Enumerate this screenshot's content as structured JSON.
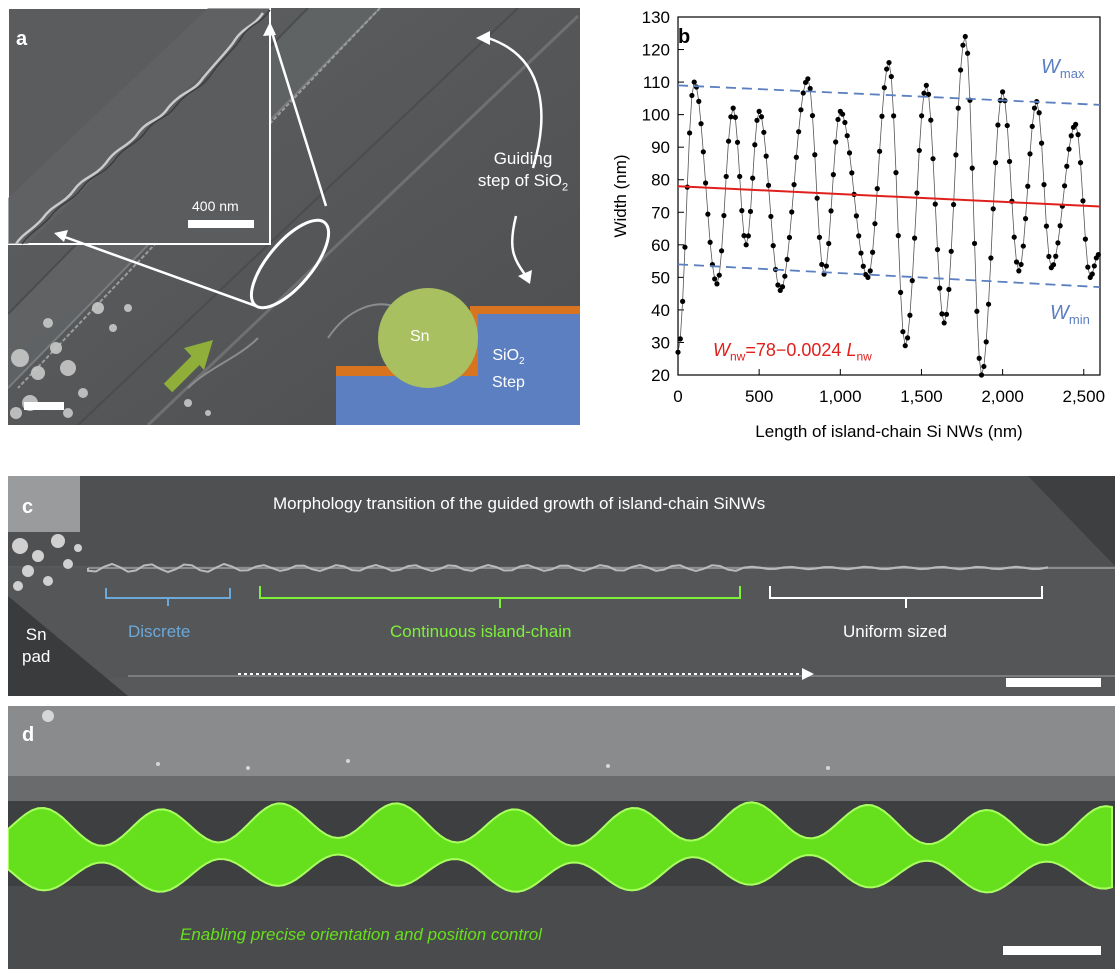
{
  "panel_a": {
    "label": "a",
    "inset_scale": "400 nm",
    "guide_line1": "Guiding",
    "guide_line2": "step of SiO",
    "guide_sub": "2",
    "sn": "Sn",
    "step_line1": "SiO",
    "step_sub": "2",
    "step_line2": "Step",
    "colors": {
      "sn": "#a8c060",
      "step": "#5b7fc0",
      "layer": "#d8731f",
      "arrow": "#8fae3a"
    }
  },
  "panel_b": {
    "label": "b",
    "wmax_main": "W",
    "wmax_sub": "max",
    "wmin_main": "W",
    "wmin_sub": "min",
    "eq_w": "W",
    "eq_w_sub": "nw",
    "eq_text": "=78−0.0024 ",
    "eq_l": "L",
    "eq_l_sub": "nw"
  },
  "chart_data": {
    "type": "scatter",
    "xlabel": "Length of island-chain Si NWs (nm)",
    "ylabel": "Width (nm)",
    "xlim": [
      0,
      2600
    ],
    "ylim": [
      20,
      130
    ],
    "xticks": [
      0,
      500,
      1000,
      1500,
      2000,
      2500
    ],
    "xtick_labels": [
      "0",
      "500",
      "1,000",
      "1,500",
      "2,000",
      "2,500"
    ],
    "yticks": [
      20,
      30,
      40,
      50,
      60,
      70,
      80,
      90,
      100,
      110,
      120,
      130
    ],
    "peaks": [
      [
        100,
        110
      ],
      [
        340,
        102
      ],
      [
        500,
        101
      ],
      [
        800,
        111
      ],
      [
        1000,
        101
      ],
      [
        1300,
        116
      ],
      [
        1530,
        109
      ],
      [
        1770,
        124
      ],
      [
        2000,
        107
      ],
      [
        2210,
        104
      ],
      [
        2450,
        97
      ]
    ],
    "troughs": [
      [
        0,
        27
      ],
      [
        240,
        48
      ],
      [
        420,
        60
      ],
      [
        630,
        46
      ],
      [
        900,
        51
      ],
      [
        1170,
        50
      ],
      [
        1400,
        29
      ],
      [
        1640,
        36
      ],
      [
        1870,
        20
      ],
      [
        2100,
        52
      ],
      [
        2300,
        53
      ],
      [
        2540,
        50
      ],
      [
        2590,
        57
      ]
    ],
    "fit_red": {
      "intercept": 78,
      "slope": -0.0024,
      "color": "#e0201c"
    },
    "wmax_line": {
      "x": [
        0,
        2600
      ],
      "y": [
        109,
        103
      ],
      "color": "#5b7fc0"
    },
    "wmin_line": {
      "x": [
        0,
        2600
      ],
      "y": [
        54,
        47
      ],
      "color": "#5b7fc0"
    }
  },
  "panel_c": {
    "label": "c",
    "title": "Morphology transition of the guided growth of island-chain SiNWs",
    "sn_pad_line1": "Sn",
    "sn_pad_line2": "pad",
    "discrete": "Discrete",
    "continuous": "Continuous island-chain",
    "uniform": "Uniform sized",
    "colors": {
      "discrete": "#6ca8d8",
      "continuous": "#7ef03a",
      "uniform": "#ffffff"
    }
  },
  "panel_d": {
    "label": "d",
    "caption": "Enabling precise orientation and position control",
    "colors": {
      "wire": "#66e01c",
      "caption": "#66e01c"
    }
  }
}
